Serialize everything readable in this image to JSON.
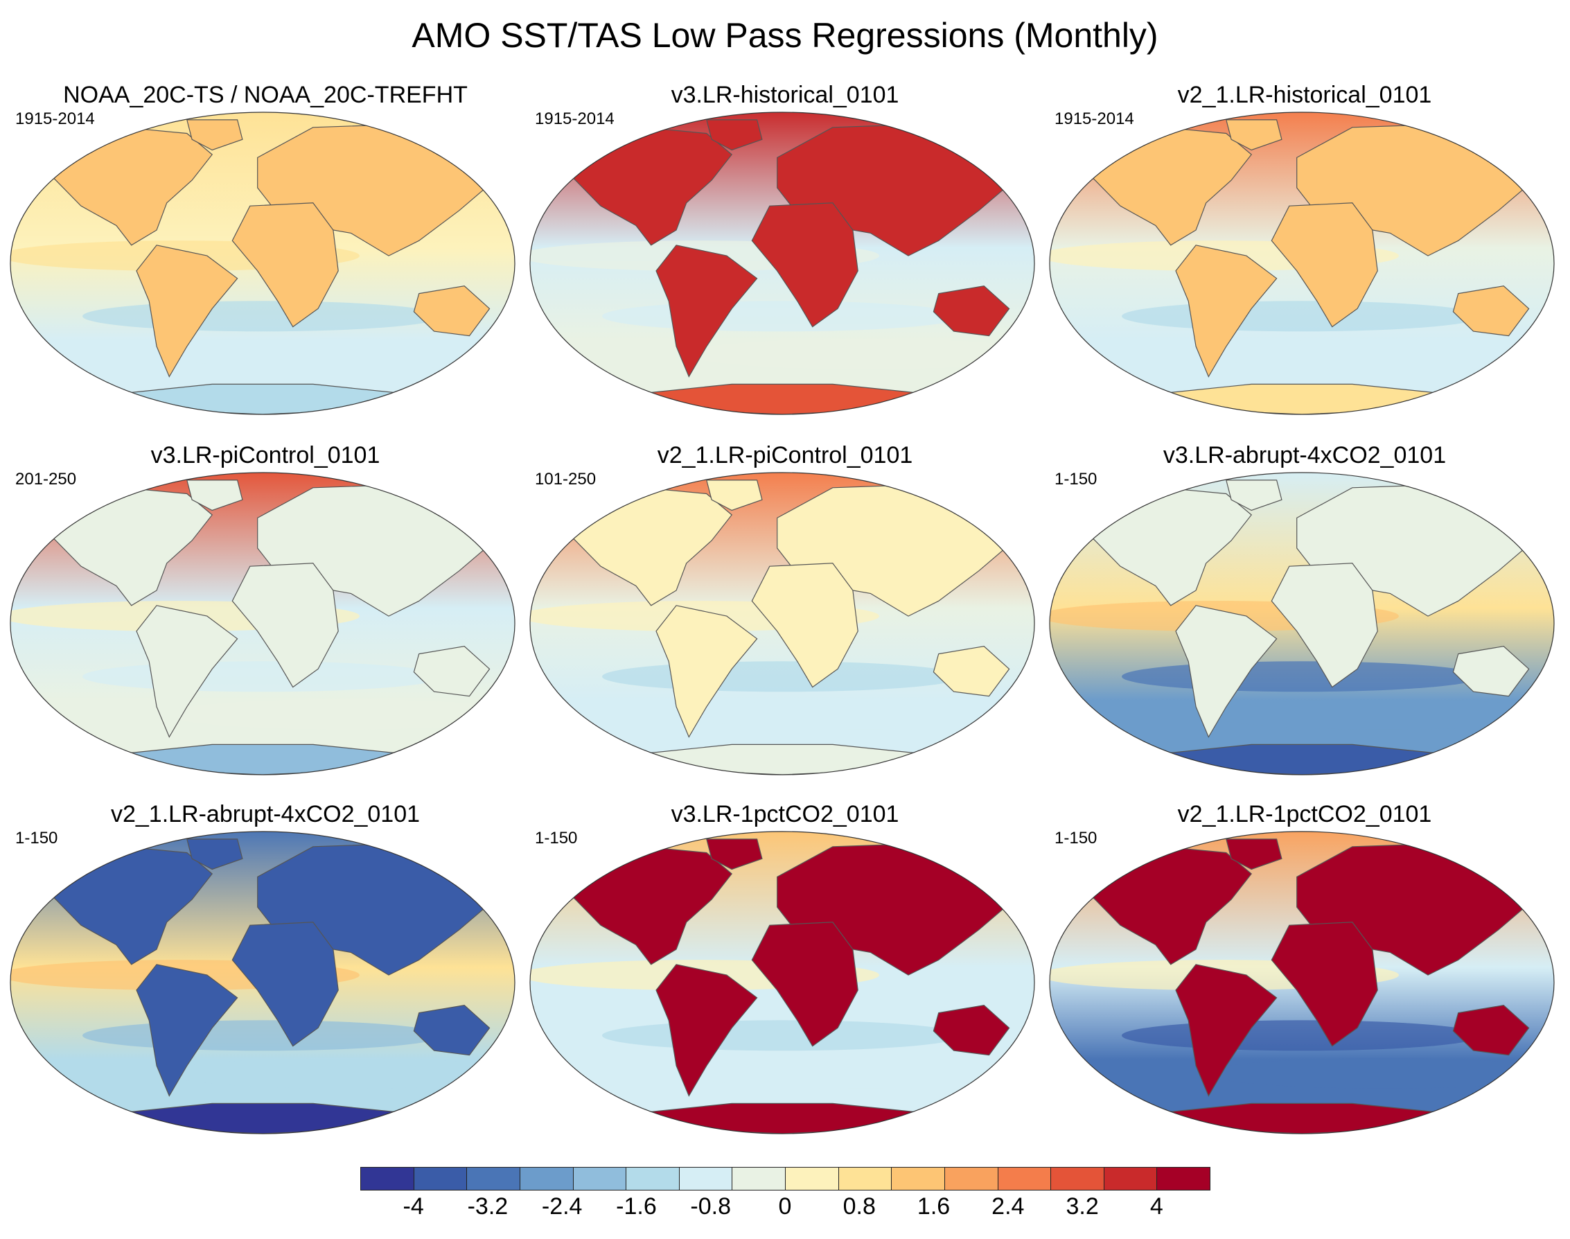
{
  "title": "AMO SST/TAS Low Pass Regressions (Monthly)",
  "panels": [
    {
      "title": "NOAA_20C-TS / NOAA_20C-TREFHT",
      "period": "1915-2014",
      "land": 1.2,
      "ocean": 0.0,
      "north": 0.8,
      "south": -1.0,
      "antarctica": -1.3
    },
    {
      "title": "v3.LR-historical_0101",
      "period": "1915-2014",
      "land": 3.6,
      "ocean": -0.7,
      "north": 3.8,
      "south": -0.5,
      "antarctica": 3.2
    },
    {
      "title": "v2_1.LR-historical_0101",
      "period": "1915-2014",
      "land": 1.2,
      "ocean": -0.5,
      "north": 2.6,
      "south": -0.8,
      "antarctica": 0.8
    },
    {
      "title": "v3.LR-piControl_0101",
      "period": "201-250",
      "land": -0.3,
      "ocean": -0.6,
      "north": 2.8,
      "south": -0.3,
      "antarctica": -2.2
    },
    {
      "title": "v2_1.LR-piControl_0101",
      "period": "101-250",
      "land": 0.4,
      "ocean": -0.5,
      "north": 2.4,
      "south": -1.0,
      "antarctica": -0.4
    },
    {
      "title": "v3.LR-abrupt-4xCO2_0101",
      "period": "1-150",
      "land": -0.3,
      "ocean": 0.6,
      "north": -1.0,
      "south": -2.4,
      "antarctica": -3.8
    },
    {
      "title": "v2_1.LR-abrupt-4xCO2_0101",
      "period": "1-150",
      "land": -3.6,
      "ocean": 0.6,
      "north": -2.8,
      "south": -1.6,
      "antarctica": -4.4
    },
    {
      "title": "v3.LR-1pctCO2_0101",
      "period": "1-150",
      "land": 4.6,
      "ocean": -0.6,
      "north": 1.2,
      "south": -1.0,
      "antarctica": 4.6
    },
    {
      "title": "v2_1.LR-1pctCO2_0101",
      "period": "1-150",
      "land": 4.6,
      "ocean": -0.6,
      "north": 2.0,
      "south": -2.8,
      "antarctica": 4.6
    }
  ],
  "colorbar": {
    "labels": [
      "-4",
      "-3.2",
      "-2.4",
      "-1.6",
      "-0.8",
      "0",
      "0.8",
      "1.6",
      "2.4",
      "3.2",
      "4"
    ],
    "colors": [
      "#313695",
      "#3a5ca8",
      "#4a75b6",
      "#6c9ccb",
      "#90bddc",
      "#b3dbea",
      "#d6eef5",
      "#e9f2e4",
      "#fdf2bc",
      "#fee296",
      "#fdc574",
      "#f9a25e",
      "#f47d4b",
      "#e45438",
      "#c92a2b",
      "#a50026"
    ]
  }
}
